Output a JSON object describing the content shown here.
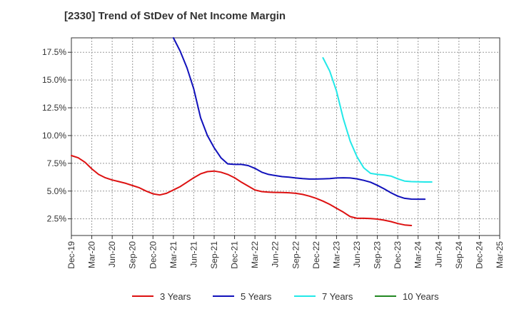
{
  "chart_data": {
    "type": "line",
    "title": "[2330]  Trend of StDev of Net Income Margin",
    "xlabel": "",
    "ylabel": "",
    "x_tick_labels": [
      "Dec-19",
      "Mar-20",
      "Jun-20",
      "Sep-20",
      "Dec-20",
      "Mar-21",
      "Jun-21",
      "Sep-21",
      "Dec-21",
      "Mar-22",
      "Jun-22",
      "Sep-22",
      "Dec-22",
      "Mar-23",
      "Jun-23",
      "Sep-23",
      "Dec-23",
      "Mar-24",
      "Jun-24",
      "Sep-24",
      "Dec-24",
      "Mar-25"
    ],
    "y_tick_labels": [
      "2.5%",
      "5.0%",
      "7.5%",
      "10.0%",
      "12.5%",
      "15.0%",
      "17.5%"
    ],
    "y_ticks": [
      2.5,
      5.0,
      7.5,
      10.0,
      12.5,
      15.0,
      17.5
    ],
    "ylim": [
      1.0,
      18.8
    ],
    "grid": true,
    "legend_position": "bottom",
    "series": [
      {
        "name": "3 Years",
        "color": "#dd1111",
        "values": [
          8.2,
          8.0,
          7.6,
          7.0,
          6.5,
          6.2,
          6.0,
          5.85,
          5.7,
          5.5,
          5.3,
          5.0,
          4.75,
          4.65,
          4.8,
          5.1,
          5.4,
          5.8,
          6.2,
          6.55,
          6.75,
          6.8,
          6.7,
          6.5,
          6.2,
          5.8,
          5.45,
          5.1,
          4.95,
          4.9,
          4.88,
          4.87,
          4.85,
          4.8,
          4.7,
          4.55,
          4.35,
          4.1,
          3.8,
          3.45,
          3.1,
          2.7,
          2.55,
          2.55,
          2.52,
          2.48,
          2.38,
          2.25,
          2.08,
          1.95,
          1.9
        ]
      },
      {
        "name": "5 Years",
        "color": "#1111bb",
        "values": [
          null,
          null,
          null,
          null,
          null,
          null,
          null,
          null,
          null,
          null,
          null,
          null,
          null,
          null,
          null,
          18.8,
          17.6,
          16.1,
          14.2,
          11.6,
          10.0,
          8.9,
          8.0,
          7.45,
          7.4,
          7.4,
          7.3,
          7.05,
          6.7,
          6.5,
          6.4,
          6.3,
          6.25,
          6.18,
          6.12,
          6.08,
          6.08,
          6.1,
          6.13,
          6.18,
          6.2,
          6.18,
          6.1,
          5.97,
          5.8,
          5.52,
          5.2,
          4.85,
          4.55,
          4.35,
          4.28,
          4.27,
          4.27
        ]
      },
      {
        "name": "7 Years",
        "color": "#22e8e8",
        "values": [
          null,
          null,
          null,
          null,
          null,
          null,
          null,
          null,
          null,
          null,
          null,
          null,
          null,
          null,
          null,
          null,
          null,
          null,
          null,
          null,
          null,
          null,
          null,
          null,
          null,
          null,
          null,
          null,
          null,
          null,
          null,
          null,
          null,
          null,
          null,
          null,
          null,
          17.0,
          15.8,
          14.0,
          11.5,
          9.5,
          8.1,
          7.1,
          6.6,
          6.5,
          6.45,
          6.35,
          6.1,
          5.9,
          5.85,
          5.83,
          5.82,
          5.82
        ]
      },
      {
        "name": "10 Years",
        "color": "#228822",
        "values": []
      }
    ]
  }
}
